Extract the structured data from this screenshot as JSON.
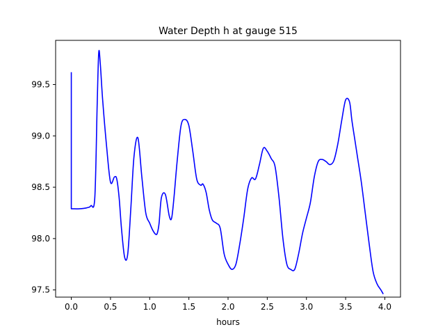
{
  "chart_data": {
    "type": "line",
    "title": "Water Depth h at gauge 515",
    "xlabel": "hours",
    "ylabel": "",
    "xlim": [
      -0.2,
      4.2
    ],
    "ylim": [
      97.43,
      99.93
    ],
    "grid": false,
    "x_ticks": [
      0.0,
      0.5,
      1.0,
      1.5,
      2.0,
      2.5,
      3.0,
      3.5,
      4.0
    ],
    "x_tick_labels": [
      "0.0",
      "0.5",
      "1.0",
      "1.5",
      "2.0",
      "2.5",
      "3.0",
      "3.5",
      "4.0"
    ],
    "y_ticks": [
      97.5,
      98.0,
      98.5,
      99.0,
      99.5
    ],
    "y_tick_labels": [
      "97.5",
      "98.0",
      "98.5",
      "99.0",
      "99.5"
    ],
    "series": [
      {
        "color": "#0000ff",
        "x": [
          0.0,
          0.0,
          0.02,
          0.1,
          0.2,
          0.25,
          0.3,
          0.33,
          0.35,
          0.37,
          0.4,
          0.45,
          0.5,
          0.55,
          0.58,
          0.61,
          0.64,
          0.68,
          0.72,
          0.76,
          0.8,
          0.85,
          0.9,
          0.95,
          1.0,
          1.04,
          1.08,
          1.1,
          1.12,
          1.15,
          1.2,
          1.25,
          1.28,
          1.31,
          1.35,
          1.4,
          1.45,
          1.5,
          1.55,
          1.6,
          1.65,
          1.68,
          1.72,
          1.76,
          1.8,
          1.85,
          1.9,
          1.95,
          2.0,
          2.05,
          2.1,
          2.15,
          2.2,
          2.25,
          2.3,
          2.35,
          2.4,
          2.45,
          2.5,
          2.55,
          2.6,
          2.65,
          2.7,
          2.75,
          2.8,
          2.85,
          2.9,
          2.95,
          3.0,
          3.05,
          3.1,
          3.15,
          3.2,
          3.25,
          3.3,
          3.35,
          3.4,
          3.45,
          3.5,
          3.55,
          3.58,
          3.62,
          3.65,
          3.7,
          3.75,
          3.8,
          3.85,
          3.9,
          3.95,
          3.98
        ],
        "y": [
          99.62,
          98.29,
          98.29,
          98.29,
          98.3,
          98.32,
          98.4,
          99.3,
          99.81,
          99.7,
          99.35,
          98.9,
          98.55,
          98.6,
          98.58,
          98.4,
          98.1,
          97.82,
          97.85,
          98.3,
          98.8,
          98.98,
          98.6,
          98.25,
          98.15,
          98.08,
          98.04,
          98.06,
          98.15,
          98.4,
          98.43,
          98.22,
          98.2,
          98.4,
          98.75,
          99.1,
          99.16,
          99.1,
          98.85,
          98.58,
          98.52,
          98.53,
          98.45,
          98.28,
          98.18,
          98.15,
          98.1,
          97.85,
          97.75,
          97.7,
          97.75,
          97.95,
          98.2,
          98.48,
          98.59,
          98.58,
          98.72,
          98.88,
          98.85,
          98.78,
          98.7,
          98.4,
          98.0,
          97.75,
          97.7,
          97.7,
          97.85,
          98.05,
          98.2,
          98.35,
          98.6,
          98.75,
          98.77,
          98.75,
          98.72,
          98.76,
          98.92,
          99.15,
          99.35,
          99.33,
          99.15,
          98.95,
          98.8,
          98.55,
          98.25,
          97.95,
          97.68,
          97.56,
          97.5,
          97.46
        ]
      }
    ]
  }
}
